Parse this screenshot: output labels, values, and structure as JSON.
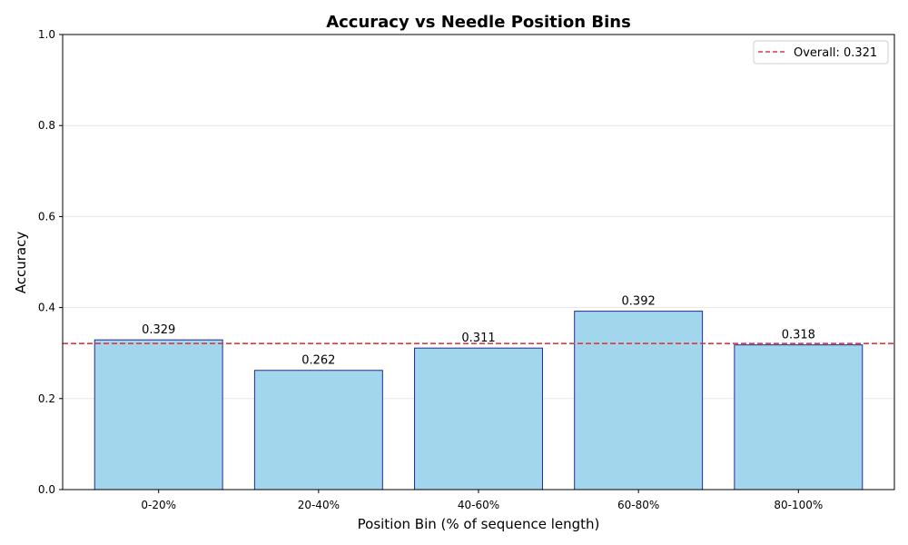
{
  "chart_data": {
    "type": "bar",
    "title": "Accuracy vs Needle Position Bins",
    "xlabel": "Position Bin (% of sequence length)",
    "ylabel": "Accuracy",
    "categories": [
      "0-20%",
      "20-40%",
      "40-60%",
      "60-80%",
      "80-100%"
    ],
    "values": [
      0.329,
      0.262,
      0.311,
      0.392,
      0.318
    ],
    "value_labels": [
      "0.329",
      "0.262",
      "0.311",
      "0.392",
      "0.318"
    ],
    "ylim": [
      0,
      1
    ],
    "yticks": [
      0.0,
      0.2,
      0.4,
      0.6,
      0.8,
      1.0
    ],
    "ytick_labels": [
      "0.0",
      "0.2",
      "0.4",
      "0.6",
      "0.8",
      "1.0"
    ],
    "grid": "horizontal",
    "reference_line": {
      "value": 0.321,
      "label": "Overall: 0.321",
      "style": "dashed"
    },
    "legend": {
      "placement": "top-right",
      "entries": [
        "Overall: 0.321"
      ]
    },
    "colors": {
      "bar_fill": "#a1d6ec",
      "bar_edge": "#1f2a9a",
      "reference_line": "#e0393e",
      "grid": "#e6e6e6",
      "axis": "#000000"
    }
  }
}
